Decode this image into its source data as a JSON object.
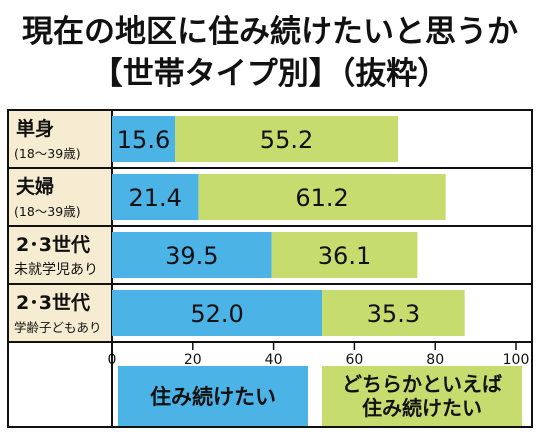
{
  "title_line1": "現在の地区に住み続けたいと思うか",
  "title_line2": "【世帯タイプ別】（抜粋）",
  "chart_data": {
    "type": "bar",
    "orientation": "horizontal",
    "stacked": true,
    "categories": [
      {
        "label": "単身",
        "sub": "(18〜39歳)"
      },
      {
        "label": "夫婦",
        "sub": "(18〜39歳)"
      },
      {
        "label": "2･3世代",
        "sub": "未就学児あり"
      },
      {
        "label": "2･3世代",
        "sub": "学齢子どもあり"
      }
    ],
    "series": [
      {
        "name": "住み続けたい",
        "values": [
          15.6,
          21.4,
          39.5,
          52.0
        ],
        "labels": [
          "15.6",
          "21.4",
          "39.5",
          "52.0"
        ],
        "color": "#4cb3e6"
      },
      {
        "name": "どちらかといえば住み続けたい",
        "values": [
          55.2,
          61.2,
          36.1,
          35.3
        ],
        "labels": [
          "55.2",
          "61.2",
          "36.1",
          "35.3"
        ],
        "color": "#c7dc6e"
      }
    ],
    "xlim": [
      0,
      100
    ],
    "xticks": [
      "0",
      "20",
      "40",
      "60",
      "80",
      "100"
    ],
    "legend_position": "bottom",
    "legend": [
      {
        "lines": [
          "住み続けたい"
        ]
      },
      {
        "lines": [
          "どちらかといえば",
          "住み続けたい"
        ]
      }
    ]
  }
}
